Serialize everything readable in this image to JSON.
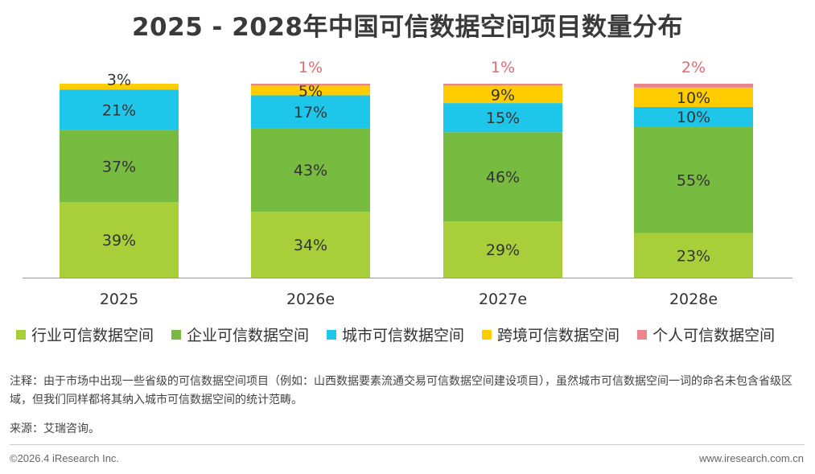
{
  "title": "2025 - 2028年中国可信数据空间项目数量分布",
  "chart_data": {
    "type": "bar",
    "stacked": true,
    "categories": [
      "2025",
      "2026e",
      "2027e",
      "2028e"
    ],
    "ylim": [
      0,
      100
    ],
    "series": [
      {
        "name": "行业可信数据空间",
        "color": "#a8cf3a",
        "values": [
          39,
          34,
          29,
          23
        ],
        "labels": [
          "39%",
          "34%",
          "29%",
          "23%"
        ]
      },
      {
        "name": "企业可信数据空间",
        "color": "#77bb41",
        "values": [
          37,
          43,
          46,
          55
        ],
        "labels": [
          "37%",
          "43%",
          "46%",
          "55%"
        ]
      },
      {
        "name": "城市可信数据空间",
        "color": "#1ec7ea",
        "values": [
          21,
          17,
          15,
          10
        ],
        "labels": [
          "21%",
          "17%",
          "15%",
          "10%"
        ]
      },
      {
        "name": "跨境可信数据空间",
        "color": "#ffcc00",
        "values": [
          3,
          5,
          9,
          10
        ],
        "labels": [
          "3%",
          "5%",
          "9%",
          "10%"
        ]
      },
      {
        "name": "个人可信数据空间",
        "color": "#e8868c",
        "values": [
          0,
          1,
          1,
          2
        ],
        "labels": [
          "",
          "1%",
          "1%",
          "2%"
        ]
      }
    ]
  },
  "note": "注释：由于市场中出现一些省级的可信数据空间项目（例如：山西数据要素流通交易可信数据空间建设项目），虽然城市可信数据空间一词的命名未包含省级区域，但我们同样都将其纳入城市可信数据空间的统计范畴。",
  "source": "来源：艾瑞咨询。",
  "copyright": "©2026.4 iResearch Inc.",
  "website": "www.iresearch.com.cn"
}
